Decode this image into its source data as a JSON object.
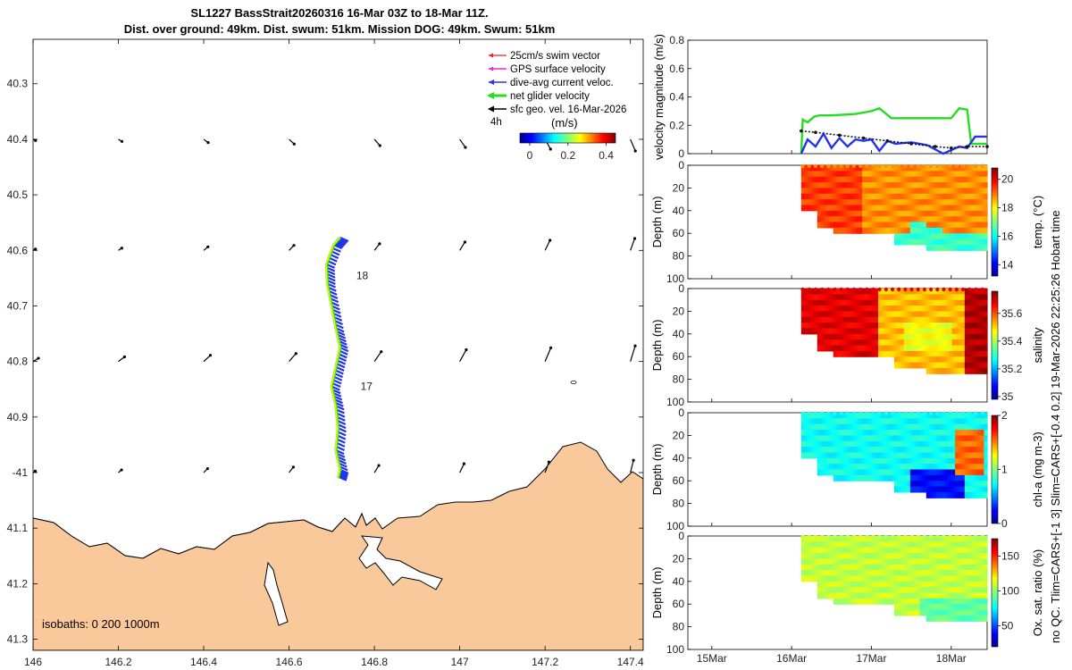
{
  "header": {
    "title_line1": "SL1227 BassStrait20260316 16-Mar 03Z to 18-Mar 11Z.",
    "title_line2": "Dist. over ground: 49km. Dist. swum: 51km. Mission DOG: 49km. Swum: 51km"
  },
  "side_note": "no QC. Tlim=CARS+[-1 3] Slim=CARS+[-0.4 0.2] 19-Mar-2026 22:25:26 Hobart time",
  "colors": {
    "land": "#f9c89b",
    "gps_track": "#f2f200",
    "net_velocity": "#22dd22",
    "current_velocity": "#2233ee",
    "swim_vector": "#ee2222",
    "gps_velocity": "#ee22ee",
    "geo_velocity": "#000000"
  },
  "map": {
    "lon_ticks": [
      "146",
      "146.2",
      "146.4",
      "146.6",
      "146.8",
      "147",
      "147.2",
      "147.4"
    ],
    "lat_ticks": [
      "40.3",
      "40.4",
      "40.5",
      "40.6",
      "40.7",
      "40.8",
      "40.9",
      "-41",
      "41.1",
      "41.2",
      "41.3"
    ],
    "lon_range": [
      146.0,
      147.43
    ],
    "lat_range": [
      40.22,
      41.32
    ],
    "isobaths_label": "isobaths: 0   200  1000m",
    "legend": [
      {
        "label": "25cm/s swim vector",
        "color": "#ee2222"
      },
      {
        "label": "GPS surface velocity",
        "color": "#ee22ee"
      },
      {
        "label": "dive-avg current veloc.",
        "color": "#2233ee"
      },
      {
        "label": "net glider velocity",
        "color": "#22dd22"
      },
      {
        "label": "sfc geo. vel. 16-Mar-2026",
        "color": "#000000"
      }
    ],
    "legend_time_label": "4h",
    "colorbar": {
      "title": "(m/s)",
      "ticks": [
        "0",
        "0.2",
        "0.4"
      ],
      "range": [
        0,
        0.5
      ]
    },
    "track_labels": [
      {
        "text": "18",
        "lon": 146.745,
        "lat": 40.645
      },
      {
        "text": "17",
        "lon": 146.755,
        "lat": 40.845
      }
    ],
    "track": [
      [
        146.72,
        40.577
      ],
      [
        146.705,
        40.59
      ],
      [
        146.688,
        40.625
      ],
      [
        146.69,
        40.66
      ],
      [
        146.7,
        40.7
      ],
      [
        146.71,
        40.74
      ],
      [
        146.72,
        40.775
      ],
      [
        146.71,
        40.81
      ],
      [
        146.7,
        40.845
      ],
      [
        146.71,
        40.88
      ],
      [
        146.715,
        40.92
      ],
      [
        146.71,
        40.96
      ],
      [
        146.72,
        40.995
      ],
      [
        146.715,
        41.01
      ]
    ]
  },
  "chart_data": [
    {
      "type": "line",
      "title": "",
      "ylabel": "velocity magnitude (m/s)",
      "ylim": [
        0,
        0.8
      ],
      "yticks": [
        "0",
        "0.2",
        "0.4",
        "0.6",
        "0.8"
      ],
      "xlim": [
        14.7,
        18.45
      ],
      "series": [
        {
          "name": "net glider velocity",
          "color": "#22dd22",
          "x": [
            16.12,
            16.14,
            16.2,
            16.28,
            16.35,
            16.5,
            16.8,
            17.0,
            17.1,
            17.25,
            17.35,
            17.5,
            17.8,
            18.0,
            18.1,
            18.2,
            18.25,
            18.45
          ],
          "y": [
            0.0,
            0.24,
            0.22,
            0.26,
            0.27,
            0.27,
            0.28,
            0.3,
            0.32,
            0.25,
            0.25,
            0.25,
            0.25,
            0.25,
            0.32,
            0.31,
            0.07,
            0.07
          ]
        },
        {
          "name": "dive-avg current veloc.",
          "color": "#2233ee",
          "x": [
            16.12,
            16.2,
            16.3,
            16.4,
            16.5,
            16.6,
            16.7,
            16.8,
            16.9,
            17.0,
            17.1,
            17.2,
            17.3,
            17.5,
            17.7,
            17.9,
            18.1,
            18.2,
            18.3,
            18.45
          ],
          "y": [
            0.0,
            0.1,
            0.05,
            0.14,
            0.04,
            0.11,
            0.05,
            0.1,
            0.09,
            0.1,
            0.02,
            0.09,
            0.07,
            0.08,
            0.06,
            0.0,
            0.05,
            0.04,
            0.12,
            0.12
          ]
        },
        {
          "name": "sfc geo. vel.",
          "color": "#111111",
          "x": [
            16.12,
            16.3,
            16.6,
            16.9,
            17.2,
            17.5,
            17.8,
            18.0,
            18.2,
            18.45
          ],
          "y": [
            0.16,
            0.15,
            0.13,
            0.11,
            0.09,
            0.07,
            0.05,
            0.04,
            0.05,
            0.05
          ]
        }
      ]
    },
    {
      "type": "heatmap",
      "ylabel": "Depth (m)",
      "clabel": "temp. (°C)",
      "ylim": [
        0,
        100
      ],
      "clim": [
        13.2,
        20.8
      ],
      "cticks": [
        "14",
        "16",
        "18",
        "20"
      ],
      "regions": [
        {
          "x0": 16.12,
          "x1": 18.45,
          "bottom": [
            45,
            56,
            58,
            55,
            58,
            65,
            70,
            72,
            75,
            72
          ],
          "value": 18.8
        },
        {
          "x0": 17.1,
          "x1": 18.45,
          "top": [
            62,
            56,
            50,
            55,
            58,
            56,
            60
          ],
          "value": 16.4
        },
        {
          "x0": 16.12,
          "x1": 16.9,
          "top": [
            0,
            0,
            0,
            0
          ],
          "depth": 40,
          "value": 19.4
        }
      ]
    },
    {
      "type": "heatmap",
      "ylabel": "Depth (m)",
      "clabel": "salinity",
      "ylim": [
        0,
        100
      ],
      "clim": [
        34.98,
        35.76
      ],
      "cticks": [
        "35",
        "35.2",
        "35.4",
        "35.6"
      ],
      "regions": [
        {
          "x0": 16.12,
          "x1": 17.1,
          "value": 35.68
        },
        {
          "x0": 17.1,
          "x1": 18.15,
          "value": 35.52
        },
        {
          "x0": 18.15,
          "x1": 18.45,
          "value": 35.72
        },
        {
          "x0": 17.4,
          "x1": 18.0,
          "value": 35.46
        }
      ]
    },
    {
      "type": "heatmap",
      "ylabel": "Depth (m)",
      "clabel": "chl-a (mg m-3)",
      "ylim": [
        0,
        100
      ],
      "clim": [
        0,
        2
      ],
      "cticks": [
        "0",
        "1",
        "2"
      ],
      "regions": [
        {
          "x0": 16.12,
          "x1": 18.45,
          "value": 0.75
        },
        {
          "x0": 17.5,
          "x1": 18.15,
          "value": 0.25
        },
        {
          "x0": 18.05,
          "x1": 18.4,
          "value": 1.55
        }
      ]
    },
    {
      "type": "heatmap",
      "ylabel": "Depth (m)",
      "clabel": "Ox. sat. ratio (%)",
      "ylim": [
        0,
        100
      ],
      "clim": [
        20,
        175
      ],
      "cticks": [
        "50",
        "100",
        "150"
      ],
      "xticks": [
        "15Mar",
        "16Mar",
        "17Mar",
        "18Mar"
      ],
      "regions": [
        {
          "x0": 16.12,
          "x1": 18.45,
          "value": 108
        },
        {
          "x0": 17.6,
          "x1": 18.45,
          "value": 92
        }
      ]
    }
  ],
  "arrows_caption": "sfc geo. vel. 16-Mar-2026"
}
